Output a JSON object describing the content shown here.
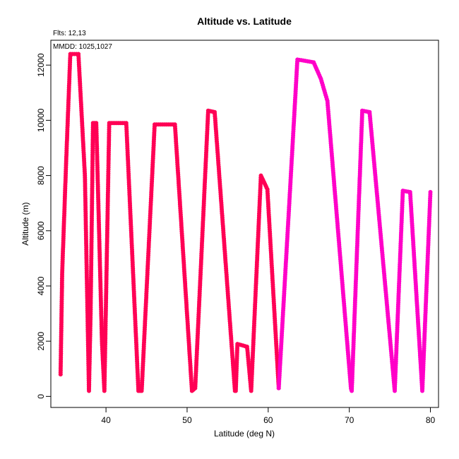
{
  "chart_data": {
    "type": "scatter",
    "title": "Altitude vs. Latitude",
    "xlabel": "Latitude (deg N)",
    "ylabel": "Altitude (m)",
    "flights_note": "Flts: 12,13",
    "dates_note": "MMDD: 1025,1027",
    "xlim": [
      33.2,
      81.0
    ],
    "ylim": [
      -400,
      12900
    ],
    "x_ticks": [
      40,
      50,
      60,
      70,
      80
    ],
    "y_ticks": [
      0,
      2000,
      4000,
      6000,
      8000,
      10000,
      12000
    ],
    "x_tick_labels": [
      "40",
      "50",
      "60",
      "70",
      "80"
    ],
    "y_tick_labels": [
      "0",
      "2000",
      "4000",
      "6000",
      "8000",
      "10000",
      "12000"
    ],
    "grid": false,
    "series": [
      {
        "color": "#ff0055",
        "points": [
          [
            34.4,
            800
          ],
          [
            34.6,
            4500
          ],
          [
            35.1,
            8600
          ],
          [
            35.6,
            12400
          ],
          [
            36.6,
            12400
          ],
          [
            37.4,
            8000
          ],
          [
            37.9,
            200
          ],
          [
            38.1,
            3000
          ],
          [
            38.4,
            9900
          ],
          [
            38.8,
            9900
          ],
          [
            39.5,
            2000
          ],
          [
            39.8,
            200
          ],
          [
            40.4,
            9900
          ],
          [
            42.5,
            9900
          ],
          [
            44.0,
            200
          ],
          [
            44.4,
            200
          ],
          [
            46.0,
            9850
          ],
          [
            48.5,
            9850
          ],
          [
            50.6,
            200
          ],
          [
            51.0,
            300
          ],
          [
            52.6,
            10350
          ],
          [
            53.4,
            10300
          ],
          [
            55.9,
            200
          ],
          [
            56.0,
            200
          ],
          [
            56.2,
            1900
          ],
          [
            57.4,
            1800
          ],
          [
            57.9,
            200
          ],
          [
            59.1,
            8000
          ],
          [
            59.9,
            7500
          ],
          [
            61.3,
            300
          ]
        ]
      },
      {
        "color": "#ff00c8",
        "points": [
          [
            61.3,
            300
          ],
          [
            62.6,
            7000
          ],
          [
            63.6,
            12200
          ],
          [
            65.6,
            12100
          ],
          [
            66.5,
            11500
          ],
          [
            67.3,
            10700
          ],
          [
            70.2,
            300
          ],
          [
            70.3,
            200
          ],
          [
            71.6,
            10350
          ],
          [
            72.5,
            10300
          ],
          [
            75.6,
            200
          ],
          [
            76.6,
            7450
          ],
          [
            77.5,
            7400
          ],
          [
            79.0,
            200
          ],
          [
            80.0,
            7400
          ]
        ]
      }
    ]
  }
}
